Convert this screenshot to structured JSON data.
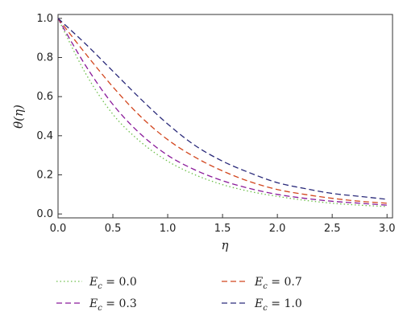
{
  "chart_data": {
    "type": "line",
    "title": "",
    "xlabel": "η",
    "ylabel": "θ(η)",
    "xlim": [
      0,
      3.05
    ],
    "ylim": [
      -0.02,
      1.02
    ],
    "xticks": [
      "0.0",
      "0.5",
      "1.0",
      "1.5",
      "2.0",
      "2.5",
      "3.0"
    ],
    "yticks": [
      "0.0",
      "0.2",
      "0.4",
      "0.6",
      "0.8",
      "1.0"
    ],
    "grid": false,
    "legend_position": "bottom",
    "x": [
      0,
      0.25,
      0.5,
      0.75,
      1.0,
      1.25,
      1.5,
      1.75,
      2.0,
      2.25,
      2.5,
      2.75,
      3.0
    ],
    "series": [
      {
        "name": "E_c = 0.0",
        "legend_symbol": "E",
        "legend_sub": "c",
        "legend_value": " = 0.0",
        "style": "dotted",
        "color": "#6cbf4a",
        "values": [
          1.0,
          0.72,
          0.51,
          0.37,
          0.27,
          0.2,
          0.15,
          0.115,
          0.09,
          0.07,
          0.055,
          0.045,
          0.038
        ]
      },
      {
        "name": "E_c = 0.3",
        "legend_symbol": "E",
        "legend_sub": "c",
        "legend_value": " = 0.3",
        "style": "dashed",
        "color": "#8a1a9a",
        "values": [
          1.0,
          0.76,
          0.56,
          0.41,
          0.3,
          0.225,
          0.17,
          0.13,
          0.1,
          0.08,
          0.065,
          0.055,
          0.045
        ]
      },
      {
        "name": "E_c = 0.7",
        "legend_symbol": "E",
        "legend_sub": "c",
        "legend_value": " = 0.7",
        "style": "dashed",
        "color": "#d2461e",
        "values": [
          1.0,
          0.82,
          0.65,
          0.5,
          0.38,
          0.29,
          0.22,
          0.165,
          0.125,
          0.1,
          0.08,
          0.065,
          0.055
        ]
      },
      {
        "name": "E_c = 1.0",
        "legend_symbol": "E",
        "legend_sub": "c",
        "legend_value": " = 1.0",
        "style": "dashed",
        "color": "#2a2a7a",
        "values": [
          1.0,
          0.87,
          0.73,
          0.59,
          0.46,
          0.35,
          0.27,
          0.21,
          0.16,
          0.13,
          0.105,
          0.09,
          0.075
        ]
      }
    ]
  }
}
